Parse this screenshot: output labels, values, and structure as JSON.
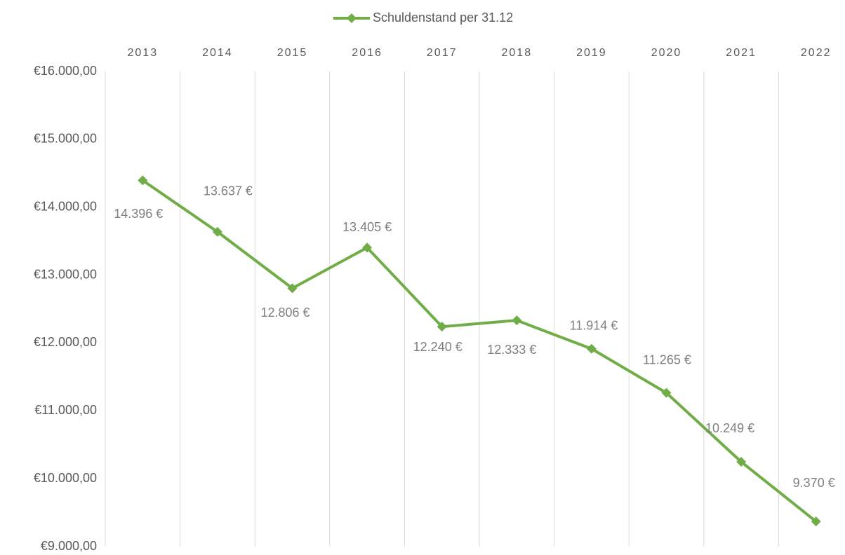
{
  "chart_data": {
    "type": "line",
    "categories": [
      "2013",
      "2014",
      "2015",
      "2016",
      "2017",
      "2018",
      "2019",
      "2020",
      "2021",
      "2022"
    ],
    "series": [
      {
        "name": "Schuldenstand per 31.12",
        "color": "#70ad47",
        "values": [
          14396,
          13637,
          12806,
          13405,
          12240,
          12333,
          11914,
          11265,
          10249,
          9370
        ],
        "value_labels": [
          "14.396 €",
          "13.637 €",
          "12.806 €",
          "13.405 €",
          "12.240 €",
          "12.333 €",
          "11.914 €",
          "11.265 €",
          "10.249 €",
          "9.370 €"
        ]
      }
    ],
    "ylim": [
      9000,
      16000
    ],
    "yticks": [
      {
        "value": 9000,
        "label": "€9.000,00"
      },
      {
        "value": 10000,
        "label": "€10.000,00"
      },
      {
        "value": 11000,
        "label": "€11.000,00"
      },
      {
        "value": 12000,
        "label": "€12.000,00"
      },
      {
        "value": 13000,
        "label": "€13.000,00"
      },
      {
        "value": 14000,
        "label": "€14.000,00"
      },
      {
        "value": 15000,
        "label": "€15.000,00"
      },
      {
        "value": 16000,
        "label": "€16.000,00"
      }
    ],
    "grid": true,
    "legend": "top"
  }
}
